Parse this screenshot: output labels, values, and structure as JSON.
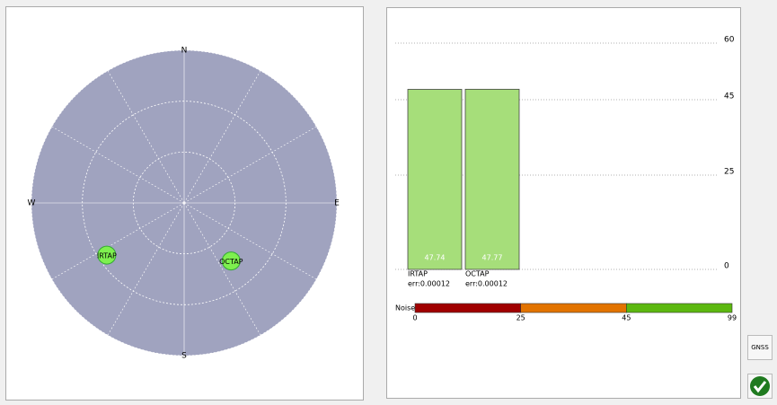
{
  "chart_data": [
    {
      "type": "polar",
      "directions": [
        "N",
        "E",
        "S",
        "W"
      ],
      "rings": [
        0,
        30,
        60
      ],
      "rlim": [
        0,
        90
      ],
      "satellites": [
        {
          "name": "IRTAP",
          "azimuth": 236,
          "elevation": 35,
          "color": "#7ef04f"
        },
        {
          "name": "OCTAP",
          "azimuth": 141,
          "elevation": 46,
          "color": "#7ef04f"
        }
      ],
      "background": "#a0a3bf"
    },
    {
      "type": "bar",
      "categories": [
        "IRTAP",
        "OCTAP"
      ],
      "sublabels": [
        "err:0.00012",
        "err:0.00012"
      ],
      "values": [
        47.74,
        47.77
      ],
      "color": "#a6de7a",
      "ylim": [
        0,
        60
      ],
      "yticks": [
        0,
        25,
        45,
        60
      ],
      "grid": true,
      "noise": {
        "label": "Noise",
        "ticks": [
          0,
          25,
          45,
          99
        ],
        "colors": [
          "#a00000",
          "#e27300",
          "#5cb810"
        ]
      }
    }
  ],
  "buttons": [
    "GNSS"
  ]
}
